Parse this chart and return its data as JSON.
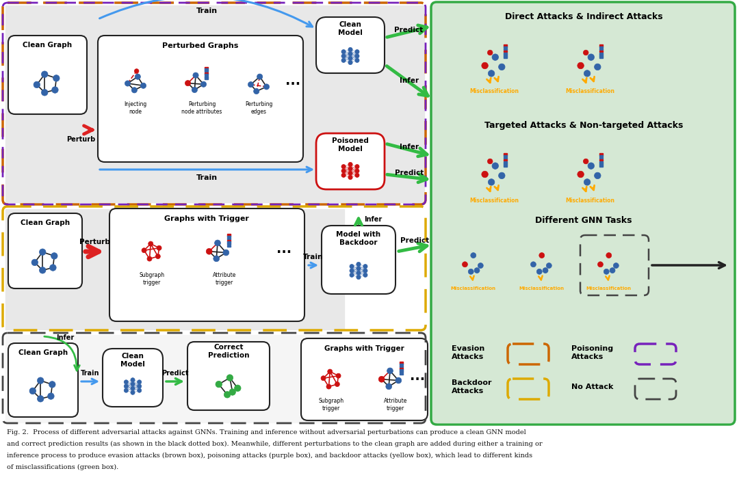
{
  "fig_width": 10.8,
  "fig_height": 7.08,
  "caption1": "Fig. 2.  Process of different adversarial attacks against GNNs. Training and inference without adversarial perturbations can produce a clean GNN model",
  "caption2": "and correct prediction results (as shown in the black dotted box). Meanwhile, different perturbations to the clean graph are added during either a training or",
  "caption3": "inference process to produce evasion attacks (brown box), poisoning attacks (purple box), and backdoor attacks (yellow box), which lead to different kinds",
  "caption4": "of misclassifications (green box).",
  "c_blue": "#3364a8",
  "c_red": "#cc1111",
  "c_green": "#33aa44",
  "c_dark": "#222222",
  "c_arr_blue": "#4499ee",
  "c_arr_green": "#33bb44",
  "c_arr_red": "#dd2222",
  "c_orange": "#ffaa00",
  "c_evasion": "#cc6600",
  "c_poison": "#7722bb",
  "c_backdoor": "#ddaa00",
  "c_noattack": "#444444",
  "c_green_bg": "#d5e8d4",
  "c_gray_bg": "#e8e8e8",
  "c_white": "#ffffff"
}
